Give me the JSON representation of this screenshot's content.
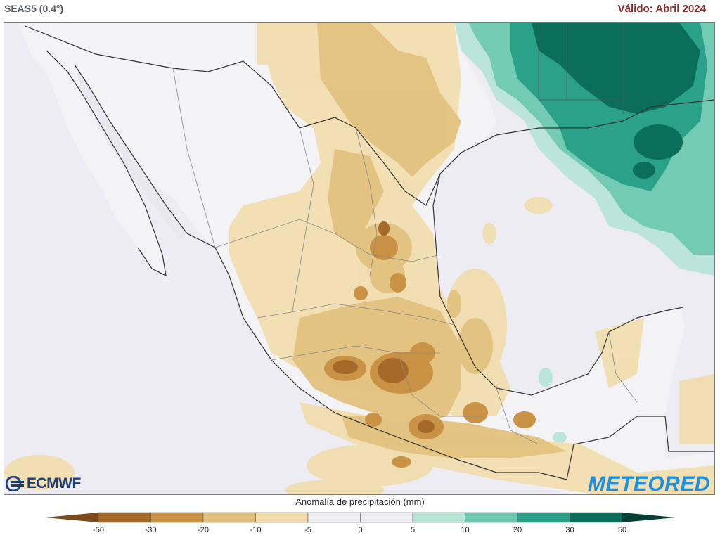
{
  "header": {
    "model": "SEAS5 (0.4°)",
    "valid": "Válido: Abril 2024"
  },
  "logos": {
    "left": "ECMWF",
    "right": "METEORED"
  },
  "legend": {
    "title": "Anomalía de precipitación (mm)",
    "ticks": [
      "-50",
      "-30",
      "-20",
      "-10",
      "-5",
      "0",
      "5",
      "10",
      "20",
      "30",
      "50"
    ],
    "colors": [
      "#7a4a1a",
      "#a56a2a",
      "#c99245",
      "#e3c27f",
      "#f1ddaf",
      "#eeeef3",
      "#eeeef3",
      "#b8e5d8",
      "#6fc9b1",
      "#2aa188",
      "#0b6e5a",
      "#053f33"
    ]
  },
  "colors": {
    "land_base": "#f3f3f6",
    "ocean": "#eeeef3",
    "dry_light": "#f1ddaf",
    "dry_mid": "#e3c27f",
    "dry_dark": "#c99245",
    "dry_darker": "#a56a2a",
    "wet_light": "#b8e5d8",
    "wet_mid": "#6fc9b1",
    "wet_dark": "#2aa188",
    "wet_darker": "#0b6e5a",
    "border": "#333333",
    "state_border": "#8a8a8a"
  }
}
